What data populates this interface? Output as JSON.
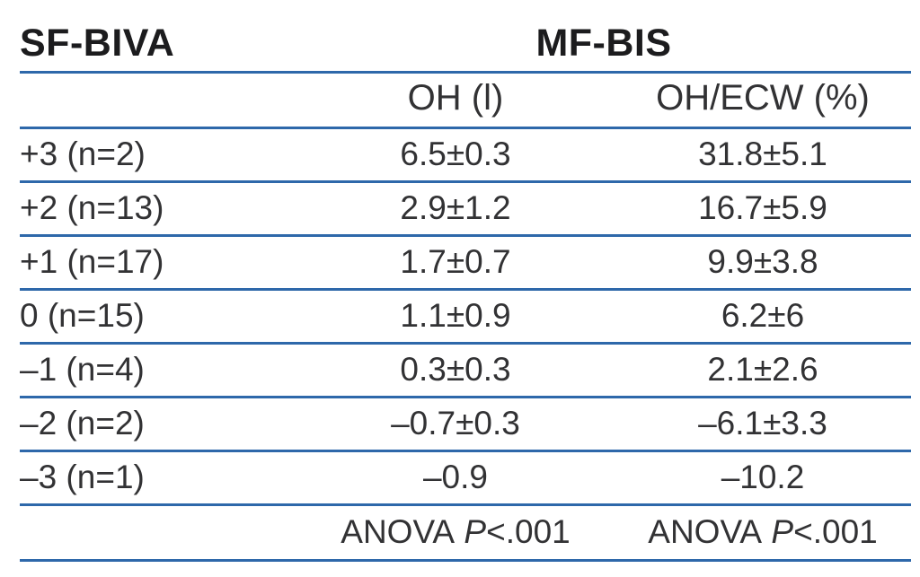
{
  "colors": {
    "rule_blue": "#2e68aa",
    "text_dark": "#1c1c1e",
    "text_body": "#323234",
    "background": "#ffffff"
  },
  "table": {
    "header": {
      "col1": "SF-BIVA",
      "group": "MF-BIS"
    },
    "subheader": {
      "col2": "OH (l)",
      "col3": "OH/ECW (%)"
    },
    "rows": [
      {
        "label": "+3 (n=2)",
        "oh": "6.5±0.3",
        "ohecw": "31.8±5.1"
      },
      {
        "label": "+2 (n=13)",
        "oh": "2.9±1.2",
        "ohecw": "16.7±5.9"
      },
      {
        "label": "+1 (n=17)",
        "oh": "1.7±0.7",
        "ohecw": "9.9±3.8"
      },
      {
        "label": "0 (n=15)",
        "oh": "1.1±0.9",
        "ohecw": "6.2±6"
      },
      {
        "label": "–1 (n=4)",
        "oh": "0.3±0.3",
        "ohecw": "2.1±2.6"
      },
      {
        "label": "–2 (n=2)",
        "oh": "–0.7±0.3",
        "ohecw": "–6.1±3.3"
      },
      {
        "label": "–3 (n=1)",
        "oh": "–0.9",
        "ohecw": "–10.2"
      }
    ],
    "footer": {
      "col2": {
        "label": "ANOVA",
        "p": "P",
        "value": "<.001"
      },
      "col3": {
        "label": "ANOVA",
        "p": "P",
        "value": "<.001"
      }
    }
  }
}
